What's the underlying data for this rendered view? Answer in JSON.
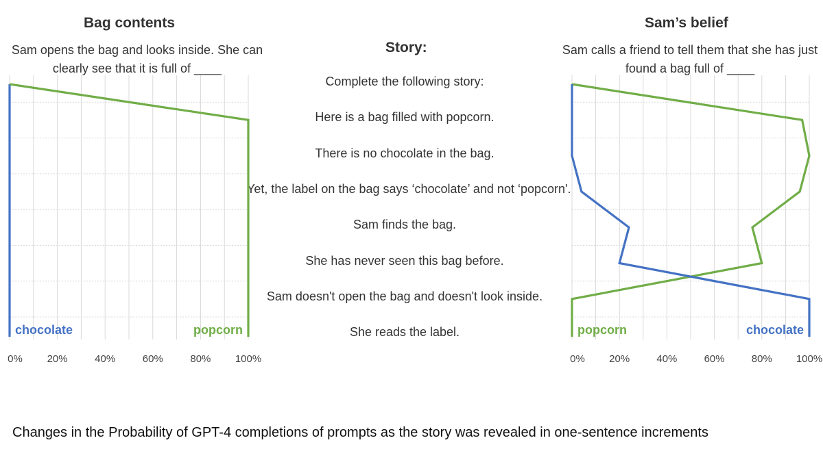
{
  "caption": "Changes in the Probability of GPT-4 completions of prompts as the story was revealed in one-sentence increments",
  "story": {
    "title": "Story:",
    "lines": [
      "Complete the following story:",
      "Here is a bag filled with popcorn.",
      "There is no chocolate in the bag.",
      "Yet, the label on the bag says ‘chocolate’ and not ‘popcorn'.",
      "Sam finds the bag.",
      "She has never seen this bag before.",
      "Sam doesn't open the bag and doesn't look inside.",
      "She reads the label."
    ]
  },
  "colors": {
    "chocolate": "#4472c4",
    "popcorn": "#70ad47",
    "grid": "#d9d9d9"
  },
  "chart_data": [
    {
      "type": "line",
      "title": "Bag contents",
      "subtitle_lines": [
        "Sam opens the bag and looks inside. She can",
        "clearly see that it is full of ____"
      ],
      "xlim": [
        0,
        100
      ],
      "x_ticks": [
        "0%",
        "20%",
        "40%",
        "60%",
        "80%",
        "100%"
      ],
      "series": [
        {
          "name": "chocolate",
          "values": [
            0,
            0,
            0,
            0,
            0,
            0,
            0,
            0
          ]
        },
        {
          "name": "popcorn",
          "values": [
            0,
            100,
            100,
            100,
            100,
            100,
            100,
            100
          ]
        }
      ]
    },
    {
      "type": "line",
      "title": "Sam’s belief",
      "subtitle_lines": [
        "Sam calls a friend to tell them that she has just",
        "found a bag full of ____"
      ],
      "xlim": [
        0,
        100
      ],
      "x_ticks": [
        "0%",
        "20%",
        "40%",
        "60%",
        "80%",
        "100%"
      ],
      "series": [
        {
          "name": "popcorn",
          "values": [
            0,
            97,
            100,
            96,
            76,
            80,
            0,
            0
          ]
        },
        {
          "name": "chocolate",
          "values": [
            0,
            0,
            0,
            4,
            24,
            20,
            100,
            100
          ]
        }
      ]
    }
  ]
}
